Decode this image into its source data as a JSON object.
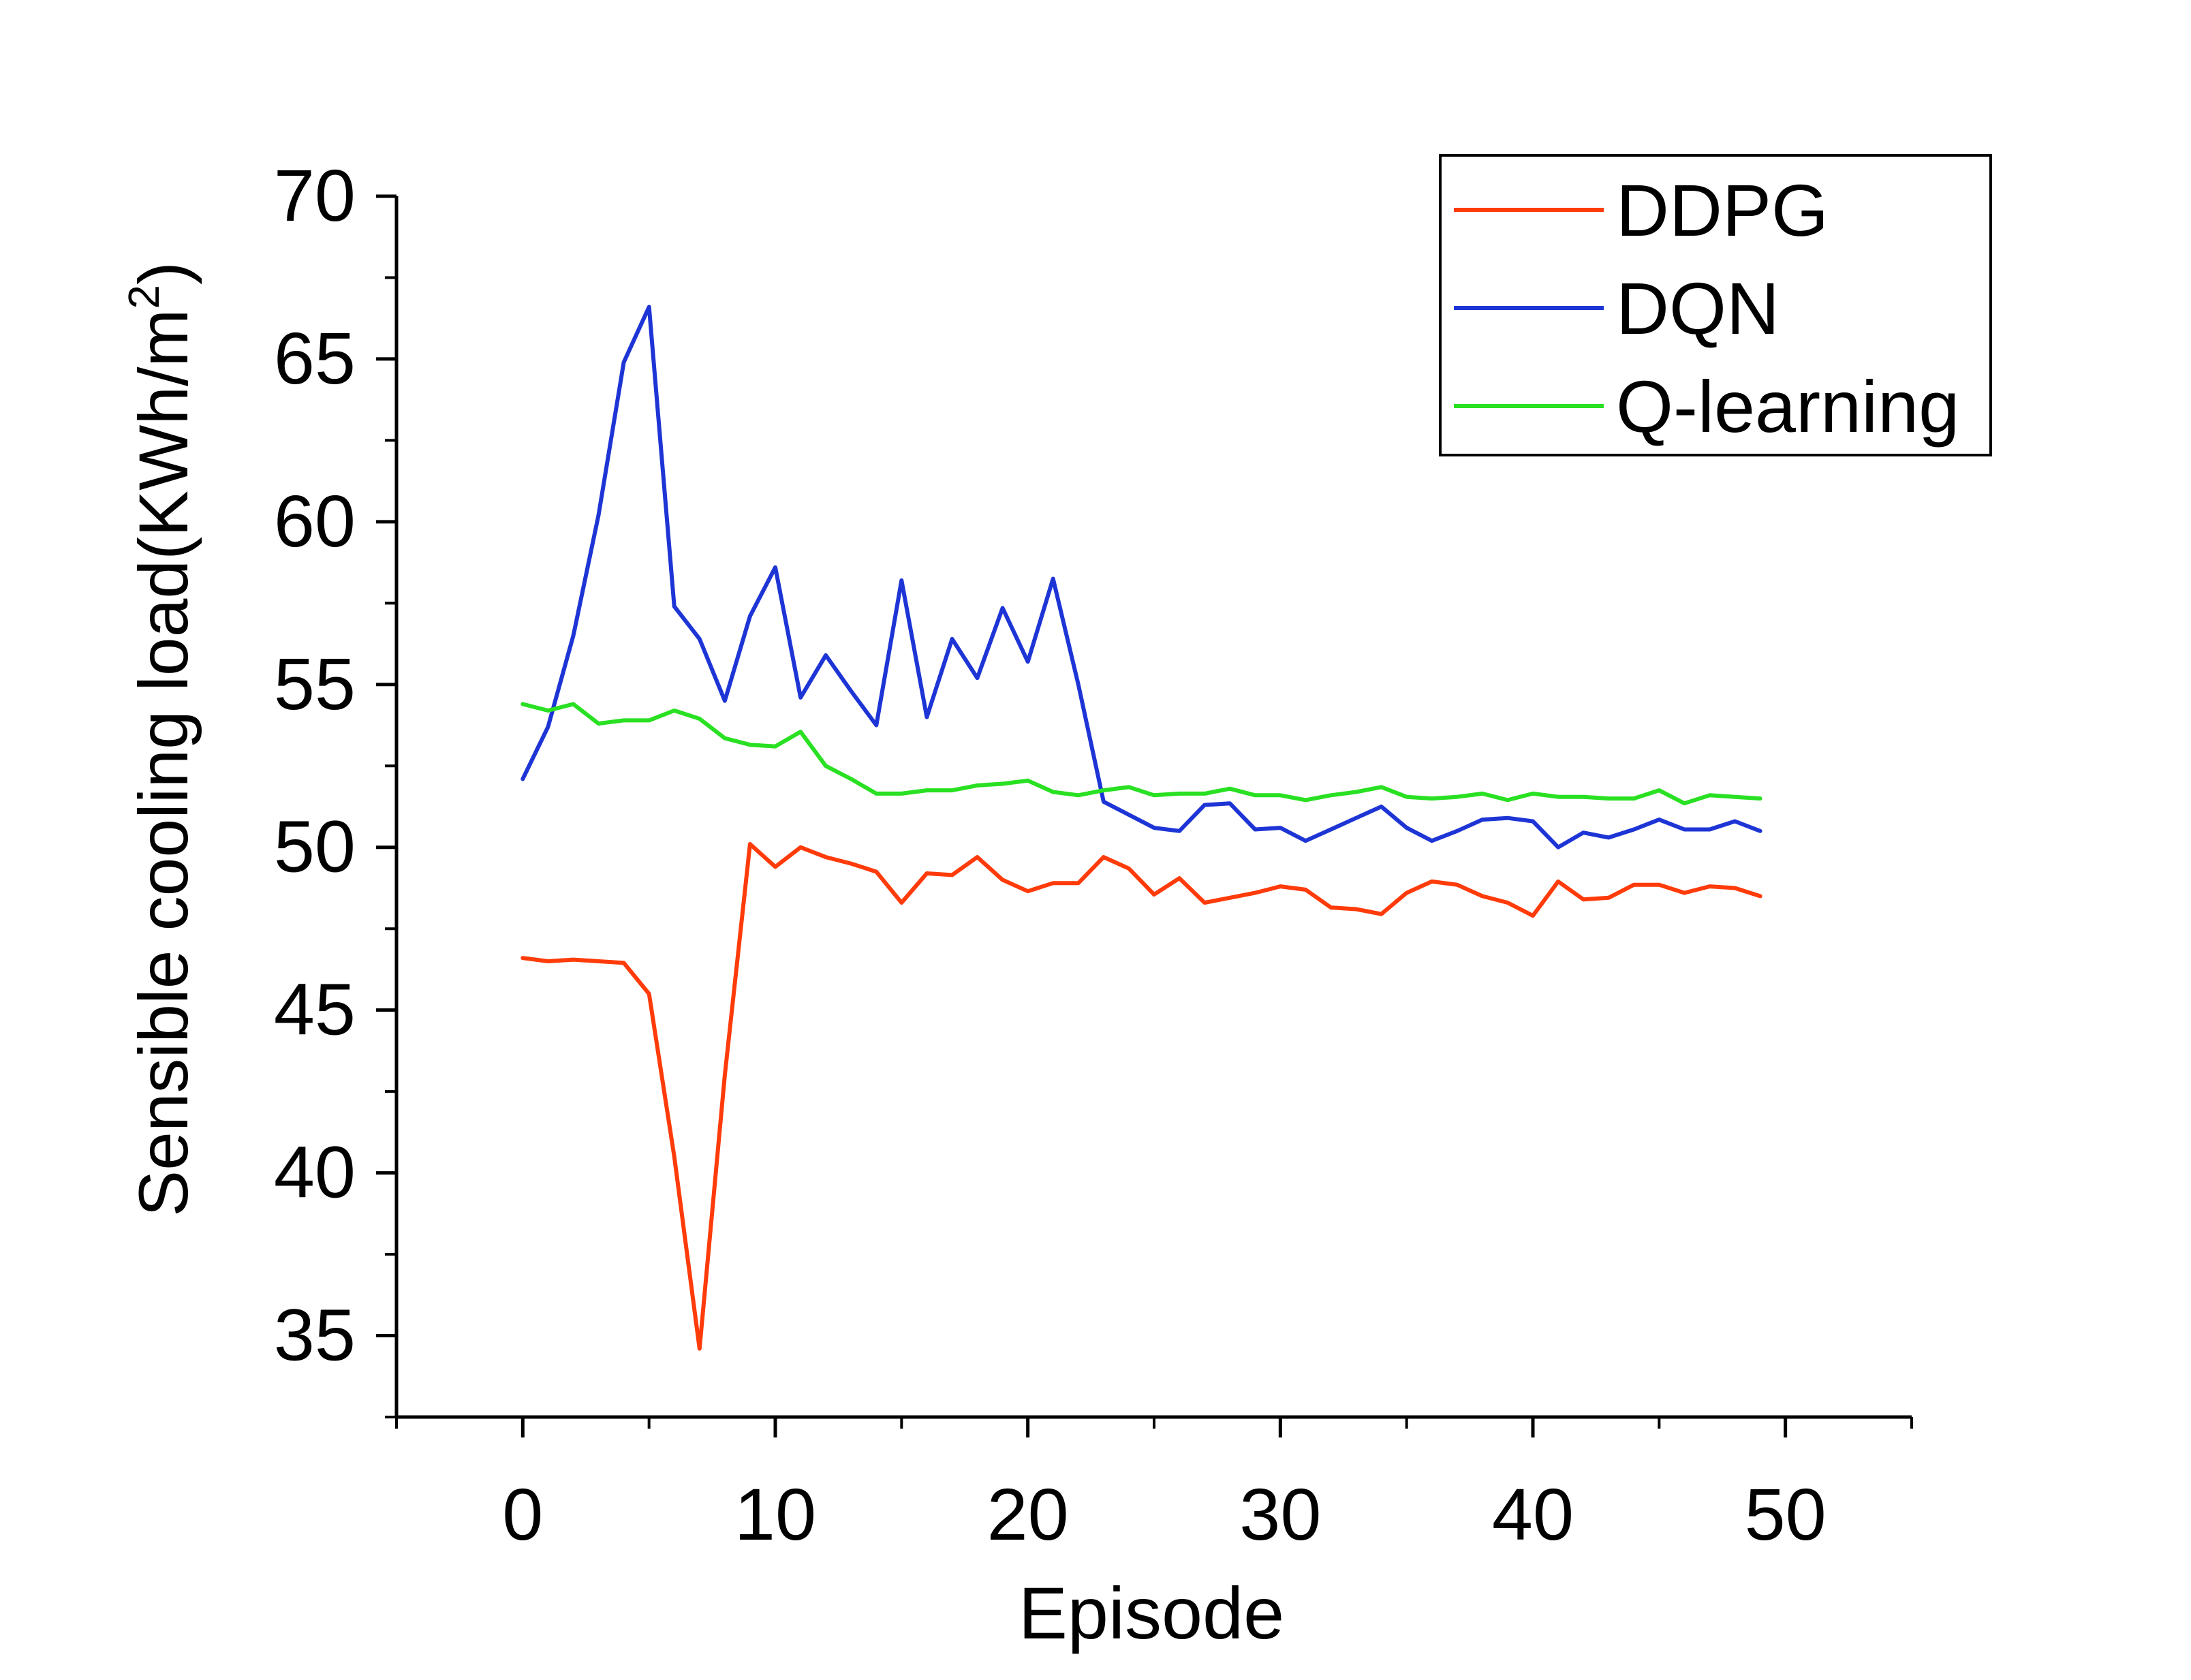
{
  "chart_data": {
    "type": "line",
    "title": "",
    "xlabel": "Episode",
    "ylabel": "Sensible cooling load(KWh/m",
    "ylabel_superscript": "2",
    "ylabel_suffix": ")",
    "xlim": [
      -5,
      55
    ],
    "ylim": [
      32.5,
      70
    ],
    "xticks": [
      0,
      10,
      20,
      30,
      40,
      50
    ],
    "xtick_labels": [
      "0",
      "10",
      "20",
      "30",
      "40",
      "50"
    ],
    "yticks": [
      35,
      40,
      45,
      50,
      55,
      60,
      65,
      70
    ],
    "ytick_labels": [
      "35",
      "40",
      "45",
      "50",
      "55",
      "60",
      "65",
      "70"
    ],
    "grid": false,
    "legend_position": "top-right",
    "x": [
      0,
      1,
      2,
      3,
      4,
      5,
      6,
      7,
      8,
      9,
      10,
      11,
      12,
      13,
      14,
      15,
      16,
      17,
      18,
      19,
      20,
      21,
      22,
      23,
      24,
      25,
      26,
      27,
      28,
      29,
      30,
      31,
      32,
      33,
      34,
      35,
      36,
      37,
      38,
      39,
      40,
      41,
      42,
      43,
      44,
      45,
      46,
      47,
      48,
      49
    ],
    "series": [
      {
        "name": "DDPG",
        "color": "#ff3b0a",
        "values": [
          46.6,
          46.5,
          46.55,
          46.5,
          46.45,
          45.5,
          40.5,
          34.6,
          43.0,
          50.1,
          49.4,
          50.0,
          49.7,
          49.5,
          49.25,
          48.3,
          49.2,
          49.15,
          49.7,
          49.0,
          48.65,
          48.9,
          48.9,
          49.7,
          49.35,
          48.55,
          49.05,
          48.3,
          48.45,
          48.6,
          48.8,
          48.7,
          48.15,
          48.1,
          47.95,
          48.6,
          48.95,
          48.85,
          48.5,
          48.3,
          47.9,
          48.95,
          48.4,
          48.45,
          48.85,
          48.85,
          48.6,
          48.8,
          48.75,
          48.5
        ]
      },
      {
        "name": "DQN",
        "color": "#1e35d6",
        "values": [
          52.1,
          53.7,
          56.5,
          60.2,
          64.9,
          66.6,
          57.4,
          56.4,
          54.5,
          57.1,
          58.6,
          54.6,
          55.9,
          54.8,
          53.75,
          58.2,
          54.0,
          56.4,
          55.2,
          57.35,
          55.7,
          58.25,
          55.0,
          51.4,
          51.0,
          50.6,
          50.5,
          51.3,
          51.35,
          50.55,
          50.6,
          50.2,
          50.55,
          50.9,
          51.25,
          50.6,
          50.2,
          50.5,
          50.85,
          50.9,
          50.8,
          50.0,
          50.45,
          50.3,
          50.55,
          50.85,
          50.55,
          50.55,
          50.8,
          50.5
        ]
      },
      {
        "name": "Q-learning",
        "color": "#29e022",
        "values": [
          54.4,
          54.2,
          54.4,
          53.8,
          53.9,
          53.9,
          54.2,
          53.95,
          53.35,
          53.15,
          53.1,
          53.55,
          52.5,
          52.1,
          51.65,
          51.65,
          51.75,
          51.75,
          51.9,
          51.95,
          52.05,
          51.7,
          51.6,
          51.75,
          51.85,
          51.6,
          51.65,
          51.65,
          51.8,
          51.6,
          51.6,
          51.45,
          51.6,
          51.7,
          51.85,
          51.55,
          51.5,
          51.55,
          51.65,
          51.45,
          51.65,
          51.55,
          51.55,
          51.5,
          51.5,
          51.75,
          51.35,
          51.6,
          51.55,
          51.5
        ]
      }
    ]
  }
}
